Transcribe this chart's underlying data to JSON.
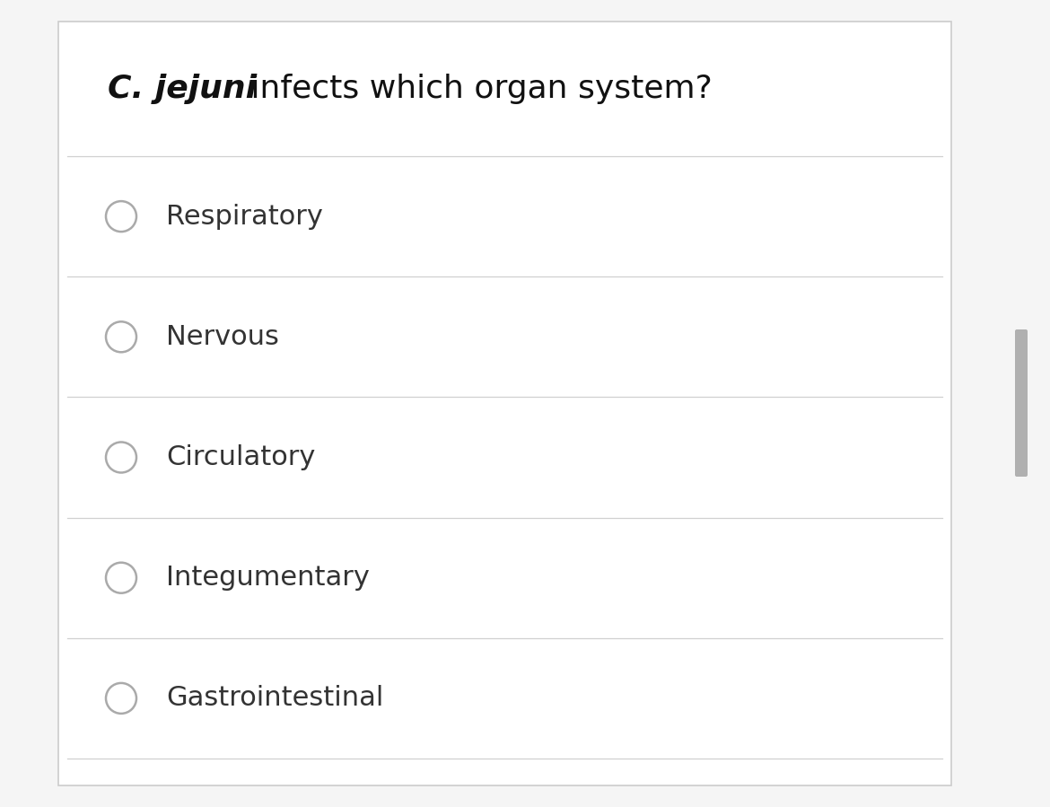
{
  "title_bold": "C. jejuni",
  "title_regular": " infects which organ system?",
  "options": [
    "Respiratory",
    "Nervous",
    "Circulatory",
    "Integumentary",
    "Gastrointestinal"
  ],
  "bg_color": "#f5f5f5",
  "card_color": "#ffffff",
  "border_color": "#cccccc",
  "text_color": "#333333",
  "line_color": "#d0d0d0",
  "circle_color": "#aaaaaa",
  "title_fontsize": 26,
  "option_fontsize": 22,
  "scrollbar_color": "#b0b0b0",
  "scrollbar_bg": "#e8e8e8"
}
